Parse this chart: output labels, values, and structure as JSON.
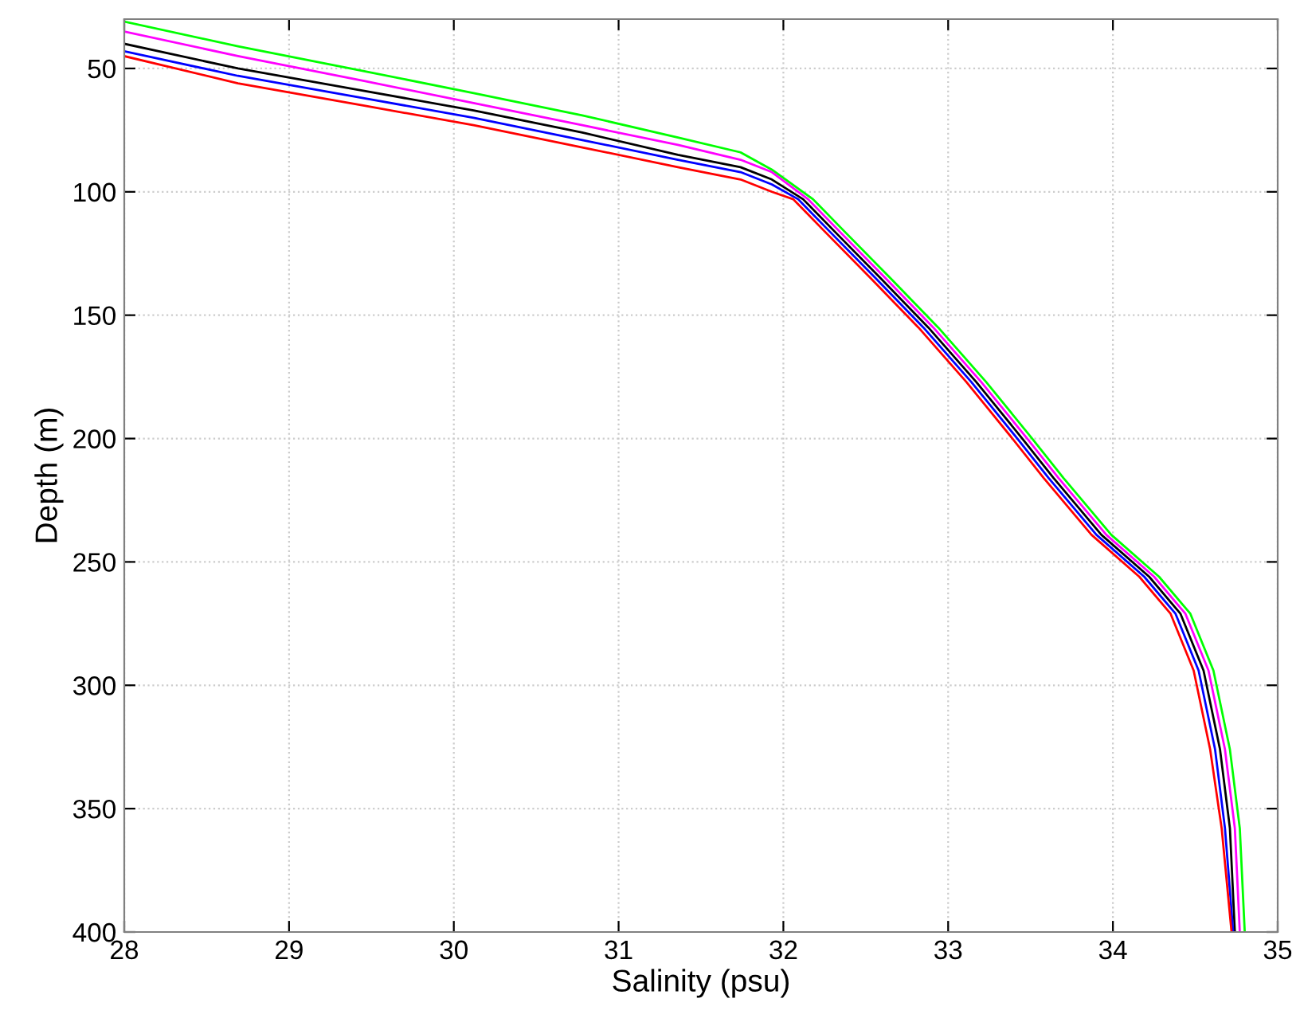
{
  "chart_data": {
    "type": "line",
    "xlabel": "Salinity (psu)",
    "ylabel": "Depth (m)",
    "xlim": [
      28,
      35
    ],
    "xticks": [
      28,
      29,
      30,
      31,
      32,
      33,
      34,
      35
    ],
    "ylim": [
      400,
      30
    ],
    "yticks": [
      50,
      100,
      150,
      200,
      250,
      300,
      350,
      400
    ],
    "grid": true,
    "marker": "none",
    "line_style": "solid",
    "series": [
      {
        "color": "#00ff00",
        "x": [
          28.0,
          28.69,
          29.45,
          30.12,
          30.78,
          31.36,
          31.74,
          31.93,
          32.18,
          32.37,
          32.65,
          32.94,
          33.23,
          33.51,
          33.7,
          33.99,
          34.28,
          34.47,
          34.61,
          34.71,
          34.77,
          34.8
        ],
        "values": [
          31,
          41,
          51,
          60,
          69,
          78,
          84,
          91,
          103,
          116,
          135,
          155,
          177,
          200,
          216,
          239,
          256,
          271,
          294,
          326,
          358,
          400
        ]
      },
      {
        "color": "#ff00ff",
        "x": [
          28.0,
          28.69,
          29.45,
          30.12,
          30.78,
          31.36,
          31.74,
          31.93,
          32.15,
          32.34,
          32.62,
          32.91,
          33.2,
          33.48,
          33.67,
          33.96,
          34.25,
          34.44,
          34.58,
          34.68,
          34.74,
          34.77
        ],
        "values": [
          35,
          45,
          55,
          64,
          73,
          81,
          87,
          92,
          103,
          116,
          135,
          155,
          177,
          200,
          216,
          239,
          256,
          271,
          294,
          326,
          358,
          400
        ]
      },
      {
        "color": "#000000",
        "x": [
          28.0,
          28.69,
          29.45,
          30.12,
          30.78,
          31.36,
          31.74,
          31.93,
          32.12,
          32.31,
          32.59,
          32.88,
          33.17,
          33.45,
          33.64,
          33.93,
          34.22,
          34.41,
          34.55,
          34.65,
          34.71,
          34.74
        ],
        "values": [
          40,
          50,
          59,
          67,
          76,
          85,
          90,
          95,
          103,
          116,
          135,
          155,
          177,
          200,
          216,
          239,
          256,
          271,
          294,
          326,
          358,
          400
        ]
      },
      {
        "color": "#0000ff",
        "x": [
          28.0,
          28.69,
          29.45,
          30.12,
          30.78,
          31.36,
          31.74,
          31.93,
          32.09,
          32.28,
          32.56,
          32.85,
          33.14,
          33.42,
          33.61,
          33.9,
          34.19,
          34.38,
          34.52,
          34.62,
          34.68,
          34.73
        ],
        "values": [
          43,
          53,
          62,
          70,
          79,
          87,
          92,
          97,
          103,
          116,
          135,
          155,
          177,
          200,
          216,
          239,
          256,
          271,
          294,
          326,
          358,
          400
        ]
      },
      {
        "color": "#ff0000",
        "x": [
          28.0,
          28.69,
          29.45,
          30.12,
          30.78,
          31.36,
          31.74,
          31.93,
          32.06,
          32.25,
          32.53,
          32.82,
          33.11,
          33.39,
          33.58,
          33.87,
          34.16,
          34.35,
          34.49,
          34.59,
          34.66,
          34.72
        ],
        "values": [
          45,
          56,
          65,
          73,
          82,
          90,
          95,
          100,
          103,
          116,
          135,
          155,
          177,
          200,
          216,
          239,
          256,
          271,
          294,
          326,
          358,
          400
        ]
      }
    ]
  }
}
